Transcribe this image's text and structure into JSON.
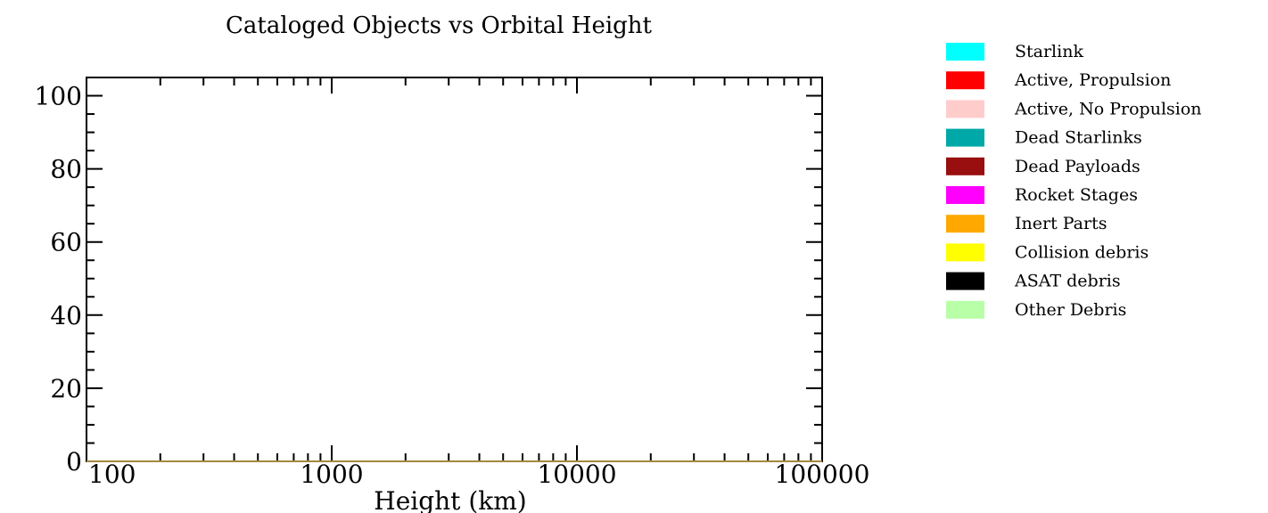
{
  "chart_data": {
    "type": "area",
    "title": "Cataloged Objects vs Orbital Height",
    "xlabel": "Height (km)",
    "ylabel": "",
    "xscale": "log",
    "xlim": [
      100,
      100000
    ],
    "ylim": [
      0,
      105
    ],
    "x_ticks": [
      100,
      1000,
      10000,
      100000
    ],
    "x_tick_labels": [
      "100",
      "1000",
      "10000",
      "100000"
    ],
    "y_ticks": [
      0,
      20,
      40,
      60,
      80,
      100
    ],
    "y_tick_labels": [
      "0",
      "20",
      "40",
      "60",
      "80",
      "100"
    ],
    "grid": false,
    "legend_position": "right",
    "baseline_color": "#a08a40",
    "series": [
      {
        "name": "Starlink",
        "color": "#00ffff",
        "values": []
      },
      {
        "name": "Active, Propulsion",
        "color": "#ff0000",
        "values": []
      },
      {
        "name": "Active, No Propulsion",
        "color": "#ffcccc",
        "values": []
      },
      {
        "name": "Dead Starlinks",
        "color": "#00a8a8",
        "values": []
      },
      {
        "name": "Dead Payloads",
        "color": "#990e0e",
        "values": []
      },
      {
        "name": "Rocket Stages",
        "color": "#ff00ff",
        "values": []
      },
      {
        "name": "Inert Parts",
        "color": "#ffa800",
        "values": []
      },
      {
        "name": "Collision debris",
        "color": "#ffff00",
        "values": []
      },
      {
        "name": "ASAT debris",
        "color": "#000000",
        "values": []
      },
      {
        "name": "Other Debris",
        "color": "#b8ffa8",
        "values": []
      }
    ]
  }
}
